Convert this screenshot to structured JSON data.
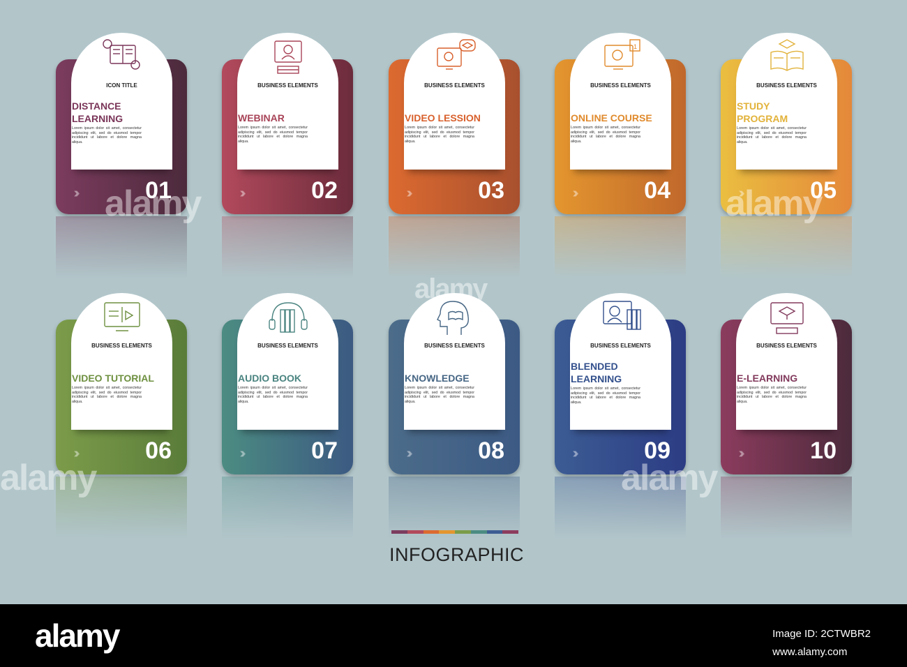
{
  "cards": [
    {
      "number": "01",
      "subtitle": "ICON TITLE",
      "title": [
        "DISTANCE",
        "LEARNING"
      ],
      "icon": "book-map-pin-icon",
      "color1": "#7c3c5e",
      "color2": "#4c2a3c",
      "title_color": "#7a3558"
    },
    {
      "number": "02",
      "subtitle": "BUSINESS ELEMENTS",
      "title": [
        "WEBINAR"
      ],
      "icon": "monitor-headset-person-icon",
      "color1": "#b24a5c",
      "color2": "#6c2c3c",
      "title_color": "#a84458"
    },
    {
      "number": "03",
      "subtitle": "BUSINESS ELEMENTS",
      "title": [
        "VIDEO LESSION"
      ],
      "icon": "video-call-graduation-icon",
      "color1": "#dc6a30",
      "color2": "#a8502e",
      "title_color": "#d8602c"
    },
    {
      "number": "04",
      "subtitle": "BUSINESS ELEMENTS",
      "title": [
        "ONLINE COURSE"
      ],
      "icon": "monitor-calendar-icon",
      "color1": "#e4962e",
      "color2": "#c0682c",
      "title_color": "#e08a2c"
    },
    {
      "number": "05",
      "subtitle": "BUSINESS ELEMENTS",
      "title": [
        "STUDY",
        "PROGRAM"
      ],
      "icon": "book-graduation-cap-icon",
      "color1": "#eabe40",
      "color2": "#e4883a",
      "title_color": "#e2b23a"
    },
    {
      "number": "06",
      "subtitle": "BUSINESS ELEMENTS",
      "title": [
        "VIDEO TUTORIAL"
      ],
      "icon": "monitor-book-play-icon",
      "color1": "#7c9c4a",
      "color2": "#5a7c3a",
      "title_color": "#6e9040"
    },
    {
      "number": "07",
      "subtitle": "BUSINESS ELEMENTS",
      "title": [
        "AUDIO BOOK"
      ],
      "icon": "headphones-books-icon",
      "color1": "#4c8c82",
      "color2": "#3c5a82",
      "title_color": "#4a8480"
    },
    {
      "number": "08",
      "subtitle": "BUSINESS ELEMENTS",
      "title": [
        "KNOWLEDGE"
      ],
      "icon": "head-book-icon",
      "color1": "#4c6c8a",
      "color2": "#3c5a84",
      "title_color": "#466684"
    },
    {
      "number": "09",
      "subtitle": "BUSINESS ELEMENTS",
      "title": [
        "BLENDED",
        "LEARNING"
      ],
      "icon": "monitor-person-books-icon",
      "color1": "#3c5c94",
      "color2": "#2c3c84",
      "title_color": "#33508c"
    },
    {
      "number": "10",
      "subtitle": "BUSINESS ELEMENTS",
      "title": [
        "E-LEARNING"
      ],
      "icon": "computer-graduation-cap-icon",
      "color1": "#8c3c5e",
      "color2": "#4c2a3c",
      "title_color": "#823a5c"
    }
  ],
  "body_text": "Lorem ipsum dolor sit amet, consectetur adipiscing elit, sed do eiusmod tempor incididunt ut labore et dolore magna aliqua.",
  "infographic": {
    "title": "INFOGRAPHIC",
    "bar_colors": [
      "#7c3c5e",
      "#b24a5c",
      "#dc6a30",
      "#e4962e",
      "#7c9c4a",
      "#4c8c82",
      "#3c5c94",
      "#8c3c5e"
    ]
  },
  "watermark": {
    "text": "alamy"
  },
  "footer": {
    "logo": "alamy",
    "image_id": "Image ID: 2CTWBR2",
    "url": "www.alamy.com"
  }
}
